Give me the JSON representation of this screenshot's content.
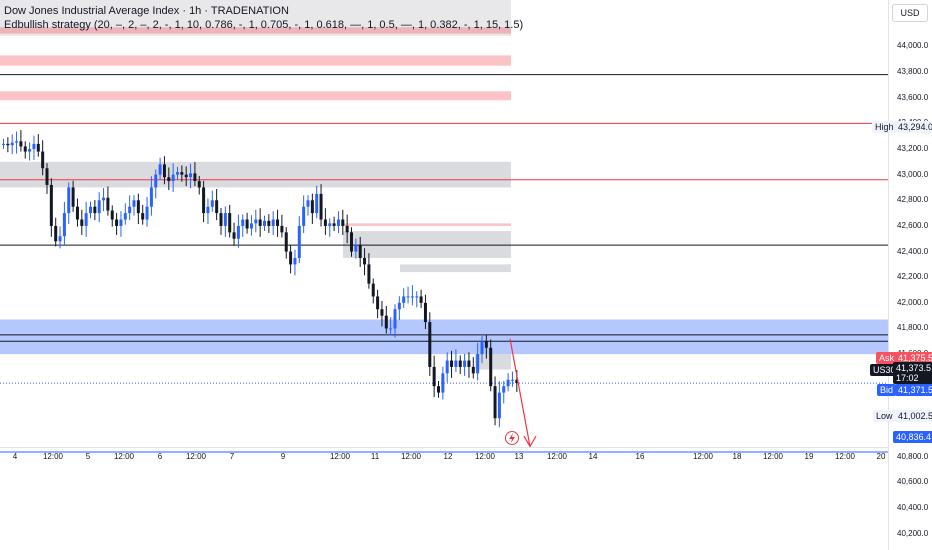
{
  "legend": {
    "title": "Dow Jones Industrial Average Index · 1h · TRADENATION",
    "indicator": "Edbullish strategy (20, –, 2, –, 2, -, 1, 10, 0.786, -, 1, 0.705, -, 1, 0.618, —, 1, 0.5, —, 1, 0.382, -, 1, 15, 1.5)"
  },
  "currency": "USD",
  "price_axis": [
    "44,000.0",
    "43,800.0",
    "43,600.0",
    "43,400.0",
    "43,200.0",
    "43,000.0",
    "42,800.0",
    "42,600.0",
    "42,400.0",
    "42,200.0",
    "42,000.0",
    "41,800.0",
    "41,600.0",
    "40,800.0",
    "40,600.0",
    "40,400.0",
    "40,200.0"
  ],
  "time_axis": [
    "4",
    "12:00",
    "5",
    "12:00",
    "6",
    "12:00",
    "7",
    "9",
    "12:00",
    "11",
    "12:00",
    "12",
    "12:00",
    "13",
    "12:00",
    "14",
    "16",
    "12:00",
    "18",
    "12:00",
    "19",
    "12:00",
    "20"
  ],
  "tags": {
    "high_label": "High",
    "high_value": "43,294.0",
    "ask_label": "Ask",
    "ask_value": "41,375.5",
    "symbol": "US30",
    "last_value": "41,373.5",
    "countdown": "17:02",
    "bid_label": "Bid",
    "bid_value": "41,371.5",
    "low_label": "Low",
    "low_value": "41,002.5",
    "target_value": "40,836.4"
  },
  "colors": {
    "up": "#2962ff",
    "down": "#131722",
    "accent_red": "#f23645",
    "zone_blue": "#2962ff",
    "zone_gray": "#9598a1",
    "zone_pink": "#f7525f"
  },
  "chart_data": {
    "type": "candlestick",
    "symbol": "US30",
    "interval": "1h",
    "ylim": [
      40150,
      44300
    ],
    "key_prices": {
      "high": 43294.0,
      "ask": 41375.5,
      "last": 41373.5,
      "bid": 41371.5,
      "low": 41002.5,
      "target": 40836.4
    },
    "closes": [
      43240,
      43230,
      43250,
      43260,
      43220,
      43180,
      43200,
      43240,
      43180,
      43050,
      42920,
      42600,
      42480,
      42520,
      42700,
      42900,
      42750,
      42650,
      42600,
      42700,
      42750,
      42700,
      42800,
      42820,
      42720,
      42650,
      42600,
      42650,
      42700,
      42750,
      42800,
      42700,
      42650,
      42750,
      42900,
      43000,
      43080,
      42980,
      42950,
      43000,
      43020,
      43000,
      42980,
      43010,
      42950,
      42900,
      42700,
      42750,
      42800,
      42700,
      42600,
      42700,
      42550,
      42500,
      42600,
      42650,
      42580,
      42620,
      42650,
      42600,
      42640,
      42600,
      42650,
      42600,
      42550,
      42400,
      42300,
      42350,
      42600,
      42750,
      42800,
      42700,
      42850,
      42650,
      42600,
      42620,
      42600,
      42650,
      42600,
      42550,
      42400,
      42450,
      42350,
      42300,
      42150,
      42050,
      41950,
      41900,
      41800,
      41800,
      41950,
      42000,
      42050,
      42050,
      42050,
      42050,
      42000,
      41850,
      41500,
      41350,
      41300,
      41450,
      41550,
      41500,
      41550,
      41500,
      41550,
      41500,
      41450,
      41600,
      41700,
      41650,
      41350,
      41100,
      41300,
      41350,
      41400,
      41400,
      41375
    ]
  }
}
